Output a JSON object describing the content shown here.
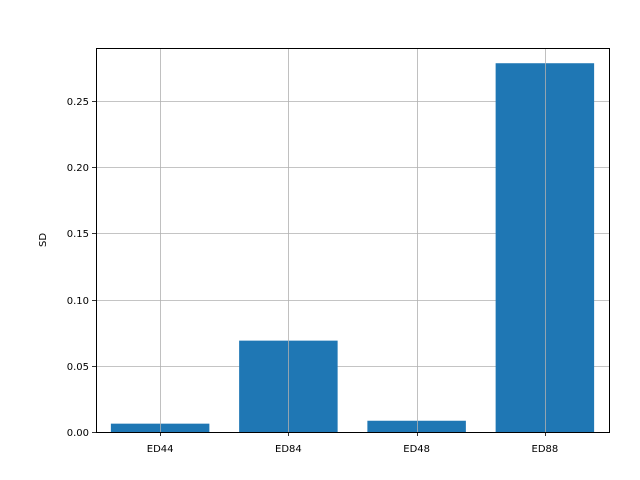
{
  "chart_data": {
    "type": "bar",
    "title": "",
    "xlabel": "",
    "ylabel": "SD",
    "categories": [
      "ED44",
      "ED84",
      "ED48",
      "ED88"
    ],
    "values": [
      0.0063,
      0.069,
      0.0085,
      0.2785
    ],
    "ylim": [
      0,
      0.29
    ],
    "yticks": [
      0.0,
      0.05,
      0.1,
      0.15,
      0.2,
      0.25
    ],
    "ytick_labels": [
      "0.00",
      "0.05",
      "0.10",
      "0.15",
      "0.20",
      "0.25"
    ],
    "grid": true,
    "bar_color": "#1f77b4",
    "grid_color": "#b0b0b0"
  }
}
